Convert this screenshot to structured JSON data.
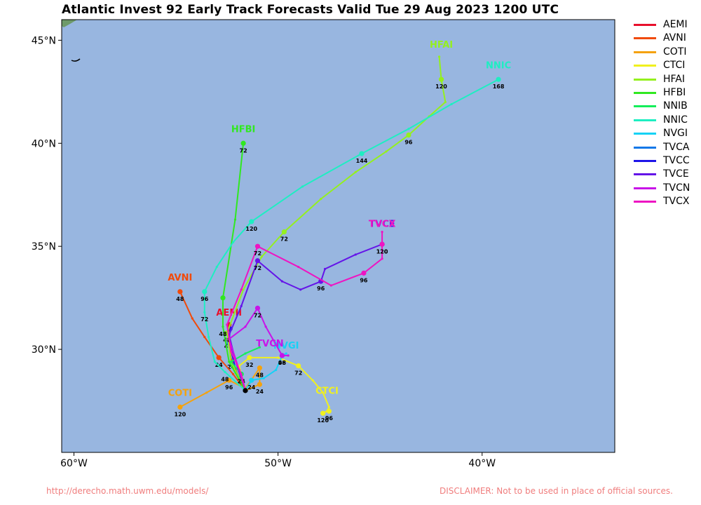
{
  "title": "Atlantic Invest 92 Early Track Forecasts Valid Tue 29 Aug 2023 1200 UTC",
  "footer": {
    "url": "http://derecho.math.uwm.edu/models/",
    "disclaimer": "DISCLAIMER: Not to be used in place of official sources."
  },
  "axes": {
    "lon_range": [
      -60.6,
      -33.5
    ],
    "lat_range": [
      25,
      46
    ],
    "x_ticks": [
      {
        "lon": -60,
        "label": "60°W"
      },
      {
        "lon": -50,
        "label": "50°W"
      },
      {
        "lon": -40,
        "label": "40°W"
      }
    ],
    "y_ticks": [
      {
        "lat": 30,
        "label": "30°N"
      },
      {
        "lat": 35,
        "label": "35°N"
      },
      {
        "lat": 40,
        "label": "40°N"
      },
      {
        "lat": 45,
        "label": "45°N"
      }
    ]
  },
  "colors": {
    "ocean": "#98b6e0",
    "land": "#6e9a6a",
    "frame": "#000000"
  },
  "current_position": {
    "lon": -51.6,
    "lat": 28.0
  },
  "legend": [
    {
      "name": "AEMI",
      "color": "#e8102c"
    },
    {
      "name": "AVNI",
      "color": "#f04a0a"
    },
    {
      "name": "COTI",
      "color": "#f5a20d"
    },
    {
      "name": "CTCI",
      "color": "#f0f01e"
    },
    {
      "name": "HFAI",
      "color": "#94f01e"
    },
    {
      "name": "HFBI",
      "color": "#30e820"
    },
    {
      "name": "NNIB",
      "color": "#14ee5a"
    },
    {
      "name": "NNIC",
      "color": "#1eeec2"
    },
    {
      "name": "NVGI",
      "color": "#14d2f5"
    },
    {
      "name": "TVCA",
      "color": "#1478e8"
    },
    {
      "name": "TVCC",
      "color": "#1e14e8"
    },
    {
      "name": "TVCE",
      "color": "#6414e8"
    },
    {
      "name": "TVCN",
      "color": "#c814e8"
    },
    {
      "name": "TVCX",
      "color": "#ee14c2"
    }
  ],
  "tracks": [
    {
      "name": "TVCA",
      "color": "#1478e8",
      "points": [
        [
          -51.6,
          28.0
        ],
        [
          -51.85,
          28.7
        ],
        [
          -52.1,
          29.5
        ],
        [
          -52.4,
          30.3
        ]
      ],
      "labels": [],
      "marks": [
        [
          -52.4,
          30.3
        ]
      ],
      "name_pos": null
    },
    {
      "name": "TVCC",
      "color": "#1e14e8",
      "points": [
        [
          -51.6,
          28.0
        ],
        [
          -52.05,
          28.9
        ],
        [
          -52.4,
          30.4
        ],
        [
          -52.35,
          31.0
        ]
      ],
      "labels": [],
      "marks": [
        [
          -52.35,
          31.0
        ]
      ],
      "name_pos": null
    },
    {
      "name": "AEMI",
      "color": "#e8102c",
      "points": [
        [
          -51.6,
          28.0
        ],
        [
          -51.9,
          28.6
        ],
        [
          -52.3,
          29.5
        ],
        [
          -52.45,
          30.5
        ],
        [
          -52.4,
          31.2
        ]
      ],
      "labels": [
        {
          "lon": -52.3,
          "lat": 29.5,
          "text": "24"
        },
        {
          "lon": -52.45,
          "lat": 30.5,
          "text": "48"
        }
      ],
      "marks": [
        [
          -52.4,
          31.2
        ]
      ],
      "name_pos": {
        "lon": -52.4,
        "lat": 31.5
      }
    },
    {
      "name": "AVNI",
      "color": "#f04a0a",
      "points": [
        [
          -51.6,
          28.0
        ],
        [
          -52.2,
          28.8
        ],
        [
          -52.9,
          29.6
        ],
        [
          -53.6,
          30.6
        ],
        [
          -54.2,
          31.5
        ],
        [
          -54.8,
          32.8
        ]
      ],
      "labels": [
        {
          "lon": -52.9,
          "lat": 29.6,
          "text": "24"
        },
        {
          "lon": -54.8,
          "lat": 32.8,
          "text": "48"
        }
      ],
      "marks": [
        [
          -52.9,
          29.6
        ],
        [
          -54.8,
          32.8
        ]
      ],
      "name_pos": {
        "lon": -54.8,
        "lat": 33.2
      }
    },
    {
      "name": "COTI",
      "color": "#f5a20d",
      "points": [
        [
          -51.6,
          28.0
        ],
        [
          -50.9,
          28.3
        ],
        [
          -50.9,
          29.1
        ],
        [
          -51.6,
          28.1
        ],
        [
          -52.4,
          28.5
        ],
        [
          -53.5,
          27.9
        ],
        [
          -54.8,
          27.2
        ]
      ],
      "labels": [
        {
          "lon": -50.9,
          "lat": 28.3,
          "text": "24"
        },
        {
          "lon": -50.9,
          "lat": 29.1,
          "text": "48"
        },
        {
          "lon": -52.4,
          "lat": 28.5,
          "text": "96"
        },
        {
          "lon": -54.8,
          "lat": 27.2,
          "text": "120"
        }
      ],
      "marks": [
        [
          -50.9,
          28.3
        ],
        [
          -50.9,
          29.1
        ],
        [
          -52.4,
          28.5
        ],
        [
          -54.8,
          27.2
        ]
      ],
      "name_pos": {
        "lon": -54.8,
        "lat": 27.6
      }
    },
    {
      "name": "CTCI",
      "color": "#f0f01e",
      "points": [
        [
          -51.6,
          28.0
        ],
        [
          -51.9,
          29.2
        ],
        [
          -51.4,
          29.6
        ],
        [
          -50.0,
          29.6
        ],
        [
          -49.0,
          29.2
        ],
        [
          -48.3,
          28.5
        ],
        [
          -47.8,
          27.9
        ],
        [
          -47.5,
          27.2
        ],
        [
          -47.6,
          27.0
        ],
        [
          -47.8,
          26.9
        ]
      ],
      "labels": [
        {
          "lon": -51.4,
          "lat": 29.6,
          "text": "32"
        },
        {
          "lon": -49.0,
          "lat": 29.2,
          "text": "72"
        },
        {
          "lon": -47.5,
          "lat": 27.0,
          "text": "96"
        },
        {
          "lon": -47.8,
          "lat": 26.9,
          "text": "120"
        }
      ],
      "marks": [
        [
          -51.4,
          29.6
        ],
        [
          -49.0,
          29.2
        ],
        [
          -47.5,
          27.0
        ],
        [
          -47.8,
          26.9
        ]
      ],
      "name_pos": {
        "lon": -47.6,
        "lat": 27.7
      }
    },
    {
      "name": "HFAI",
      "color": "#94f01e",
      "points": [
        [
          -51.6,
          28.0
        ],
        [
          -52.3,
          29.4
        ],
        [
          -52.5,
          30.8
        ],
        [
          -51.7,
          32.9
        ],
        [
          -50.8,
          34.5
        ],
        [
          -49.7,
          35.7
        ],
        [
          -47.9,
          37.3
        ],
        [
          -46.2,
          38.6
        ],
        [
          -44.7,
          39.6
        ],
        [
          -43.6,
          40.4
        ],
        [
          -42.6,
          41.3
        ],
        [
          -41.8,
          42.0
        ],
        [
          -42.0,
          43.1
        ],
        [
          -42.1,
          44.2
        ]
      ],
      "labels": [
        {
          "lon": -52.5,
          "lat": 30.8,
          "text": "48"
        },
        {
          "lon": -49.7,
          "lat": 35.7,
          "text": "72"
        },
        {
          "lon": -43.6,
          "lat": 40.4,
          "text": "96"
        },
        {
          "lon": -42.0,
          "lat": 43.1,
          "text": "120"
        }
      ],
      "marks": [
        [
          -52.5,
          30.8
        ],
        [
          -49.7,
          35.7
        ],
        [
          -43.6,
          40.4
        ],
        [
          -42.0,
          43.1
        ]
      ],
      "name_pos": {
        "lon": -42.0,
        "lat": 44.5
      }
    },
    {
      "name": "HFBI",
      "color": "#30e820",
      "points": [
        [
          -51.6,
          28.0
        ],
        [
          -52.4,
          29.4
        ],
        [
          -52.7,
          31.1
        ],
        [
          -52.7,
          32.5
        ],
        [
          -52.1,
          36.3
        ],
        [
          -51.7,
          40.0
        ]
      ],
      "labels": [
        {
          "lon": -52.7,
          "lat": 31.1,
          "text": "48"
        },
        {
          "lon": -51.7,
          "lat": 40.0,
          "text": "72"
        }
      ],
      "marks": [
        [
          -52.7,
          32.5
        ],
        [
          -51.7,
          40.0
        ]
      ],
      "name_pos": {
        "lon": -51.7,
        "lat": 40.4
      }
    },
    {
      "name": "NNIB",
      "color": "#14ee5a",
      "points": [
        [
          -51.6,
          28.0
        ],
        [
          -51.8,
          28.8
        ],
        [
          -52.3,
          29.4
        ],
        [
          -51.6,
          29.8
        ],
        [
          -50.9,
          30.1
        ]
      ],
      "labels": [
        {
          "lon": -51.8,
          "lat": 28.8,
          "text": "24"
        }
      ],
      "marks": [
        [
          -51.8,
          28.8
        ]
      ],
      "name_pos": null
    },
    {
      "name": "NNIC",
      "color": "#1eeec2",
      "points": [
        [
          -51.6,
          28.0
        ],
        [
          -52.6,
          28.9
        ],
        [
          -53.1,
          29.4
        ],
        [
          -53.4,
          30.6
        ],
        [
          -53.6,
          31.8
        ],
        [
          -53.6,
          32.8
        ],
        [
          -53.0,
          34.0
        ],
        [
          -52.2,
          35.2
        ],
        [
          -51.3,
          36.2
        ],
        [
          -48.8,
          37.9
        ],
        [
          -45.9,
          39.5
        ],
        [
          -43.6,
          40.7
        ],
        [
          -41.5,
          41.9
        ],
        [
          -39.2,
          43.1
        ]
      ],
      "labels": [
        {
          "lon": -52.6,
          "lat": 28.9,
          "text": "48"
        },
        {
          "lon": -53.6,
          "lat": 31.8,
          "text": "72"
        },
        {
          "lon": -53.6,
          "lat": 32.8,
          "text": "96"
        },
        {
          "lon": -51.3,
          "lat": 36.2,
          "text": "120"
        },
        {
          "lon": -45.9,
          "lat": 39.5,
          "text": "144"
        },
        {
          "lon": -39.2,
          "lat": 43.1,
          "text": "168"
        }
      ],
      "marks": [
        [
          -53.6,
          32.8
        ],
        [
          -51.3,
          36.2
        ],
        [
          -45.9,
          39.5
        ],
        [
          -39.2,
          43.1
        ]
      ],
      "name_pos": {
        "lon": -39.2,
        "lat": 43.5
      }
    },
    {
      "name": "NVGI",
      "color": "#14d2f5",
      "points": [
        [
          -51.6,
          28.0
        ],
        [
          -51.3,
          28.5
        ],
        [
          -50.7,
          28.6
        ],
        [
          -50.1,
          29.0
        ],
        [
          -49.8,
          29.7
        ],
        [
          -49.6,
          29.8
        ]
      ],
      "labels": [
        {
          "lon": -51.3,
          "lat": 28.5,
          "text": "24"
        },
        {
          "lon": -49.8,
          "lat": 29.7,
          "text": "48"
        }
      ],
      "marks": [
        [
          -51.3,
          28.5
        ],
        [
          -49.8,
          29.7
        ]
      ],
      "name_pos": {
        "lon": -49.6,
        "lat": 29.9
      }
    },
    {
      "name": "TVCE",
      "color": "#6414e8",
      "points": [
        [
          -51.6,
          28.0
        ],
        [
          -52.1,
          29.5
        ],
        [
          -52.4,
          30.7
        ],
        [
          -51.8,
          32.1
        ],
        [
          -51.0,
          34.3
        ],
        [
          -49.8,
          33.3
        ],
        [
          -48.9,
          32.9
        ],
        [
          -47.9,
          33.3
        ],
        [
          -47.7,
          33.9
        ],
        [
          -46.2,
          34.6
        ],
        [
          -44.9,
          35.1
        ]
      ],
      "labels": [
        {
          "lon": -51.0,
          "lat": 34.3,
          "text": "72"
        },
        {
          "lon": -47.9,
          "lat": 33.3,
          "text": "96"
        },
        {
          "lon": -44.9,
          "lat": 35.1,
          "text": "120"
        }
      ],
      "marks": [
        [
          -51.0,
          34.3
        ],
        [
          -47.9,
          33.3
        ],
        [
          -44.9,
          35.1
        ]
      ],
      "name_pos": {
        "lon": -44.9,
        "lat": 35.8
      }
    },
    {
      "name": "TVCN",
      "color": "#c814e8",
      "points": [
        [
          -51.6,
          28.0
        ],
        [
          -51.9,
          29.0
        ],
        [
          -52.4,
          30.5
        ],
        [
          -51.6,
          31.1
        ],
        [
          -51.0,
          32.0
        ],
        [
          -50.6,
          31.1
        ],
        [
          -49.8,
          29.7
        ],
        [
          -49.5,
          29.7
        ]
      ],
      "labels": [
        {
          "lon": -51.0,
          "lat": 32.0,
          "text": "72"
        },
        {
          "lon": -49.8,
          "lat": 29.7,
          "text": "96"
        }
      ],
      "marks": [
        [
          -51.0,
          32.0
        ],
        [
          -49.8,
          29.7
        ]
      ],
      "name_pos": {
        "lon": -50.4,
        "lat": 30.0
      }
    },
    {
      "name": "TVCX",
      "color": "#ee14c2",
      "points": [
        [
          -51.6,
          28.0
        ],
        [
          -51.8,
          28.8
        ],
        [
          -52.3,
          29.9
        ],
        [
          -52.5,
          31.2
        ],
        [
          -51.8,
          32.9
        ],
        [
          -51.0,
          35.0
        ],
        [
          -49.0,
          34.0
        ],
        [
          -47.4,
          33.1
        ],
        [
          -45.8,
          33.7
        ],
        [
          -44.9,
          34.4
        ],
        [
          -44.9,
          35.7
        ]
      ],
      "labels": [
        {
          "lon": -51.0,
          "lat": 35.0,
          "text": "72"
        },
        {
          "lon": -45.8,
          "lat": 33.7,
          "text": "96"
        },
        {
          "lon": -44.9,
          "lat": 35.1,
          "text": "120"
        }
      ],
      "marks": [
        [
          -51.0,
          35.0
        ],
        [
          -45.8,
          33.7
        ],
        [
          -44.9,
          35.1
        ]
      ],
      "name_pos": {
        "lon": -44.9,
        "lat": 35.8
      }
    }
  ]
}
